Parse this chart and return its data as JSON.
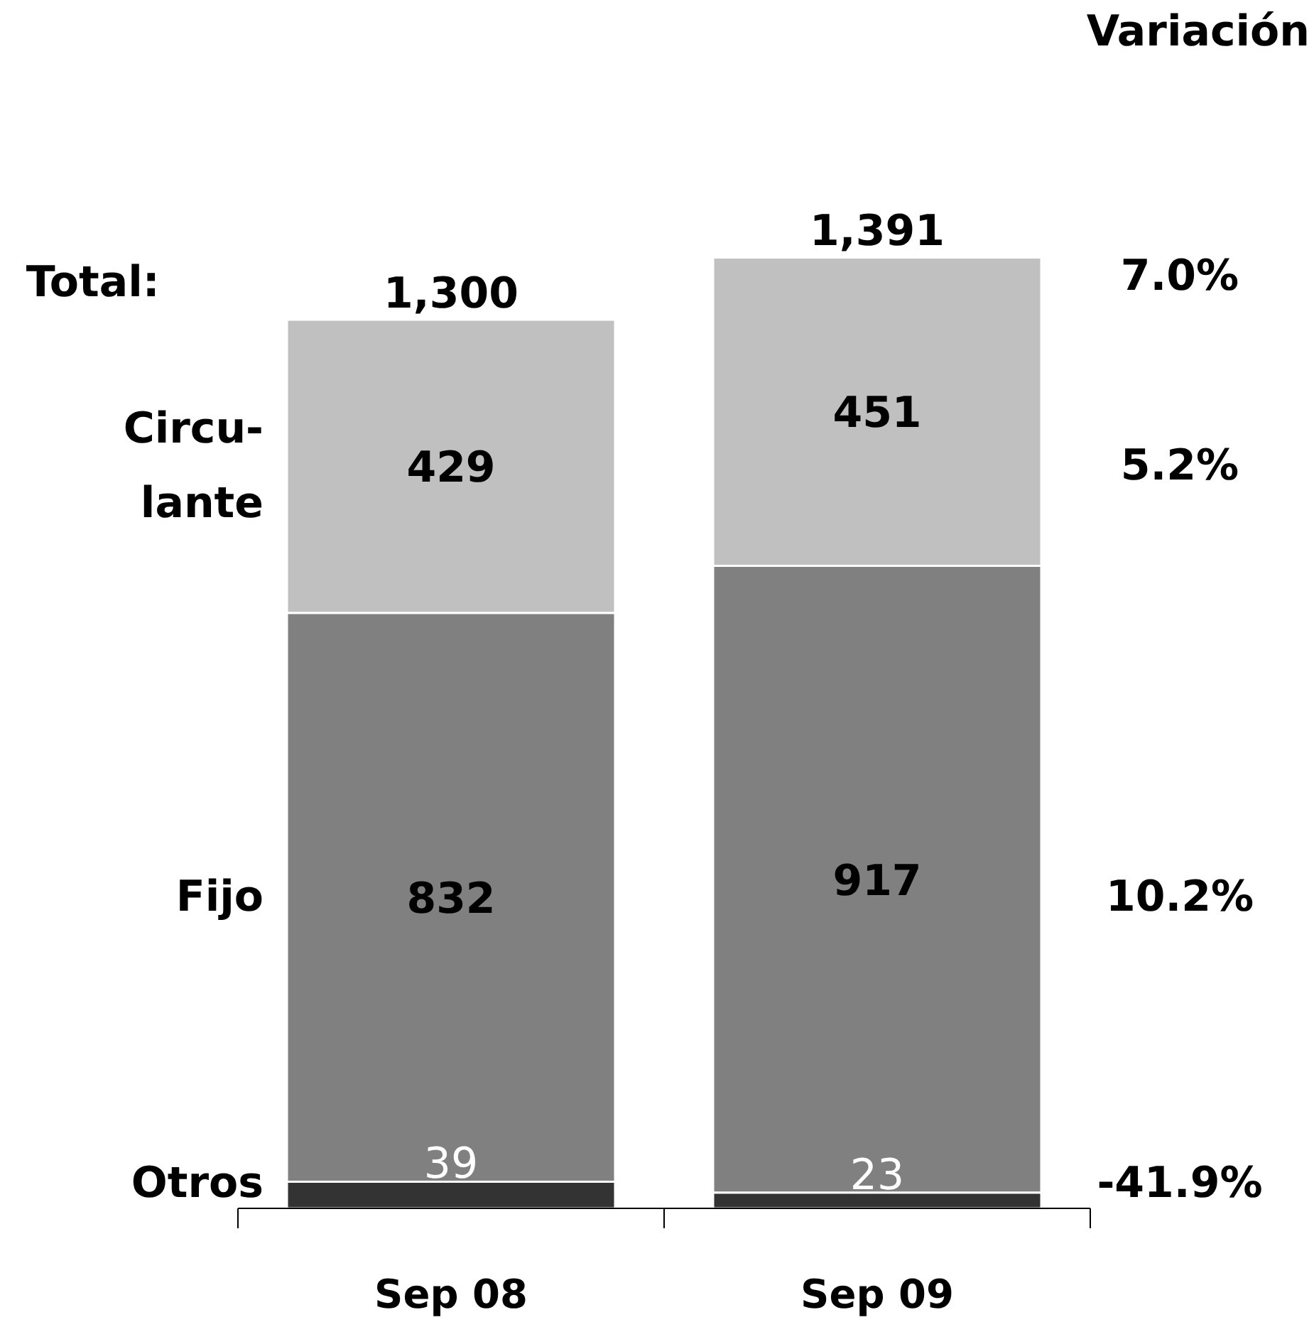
{
  "chart_data": {
    "type": "bar",
    "stacked": true,
    "categories": [
      "Sep 08",
      "Sep 09"
    ],
    "series": [
      {
        "name": "Otros",
        "color": "#333333",
        "values": [
          39,
          23
        ]
      },
      {
        "name": "Fijo",
        "color": "#808080",
        "values": [
          832,
          917
        ]
      },
      {
        "name": "Circu-\nlante",
        "color": "#c0c0c0",
        "values": [
          429,
          451
        ]
      }
    ],
    "data_labels": true,
    "totals": [
      "1,300",
      "1,391"
    ],
    "annotations": [
      "Variación",
      "Total:",
      "7.0%",
      "5.2%",
      "10.2%",
      "-41.9%"
    ],
    "grid": false
  }
}
